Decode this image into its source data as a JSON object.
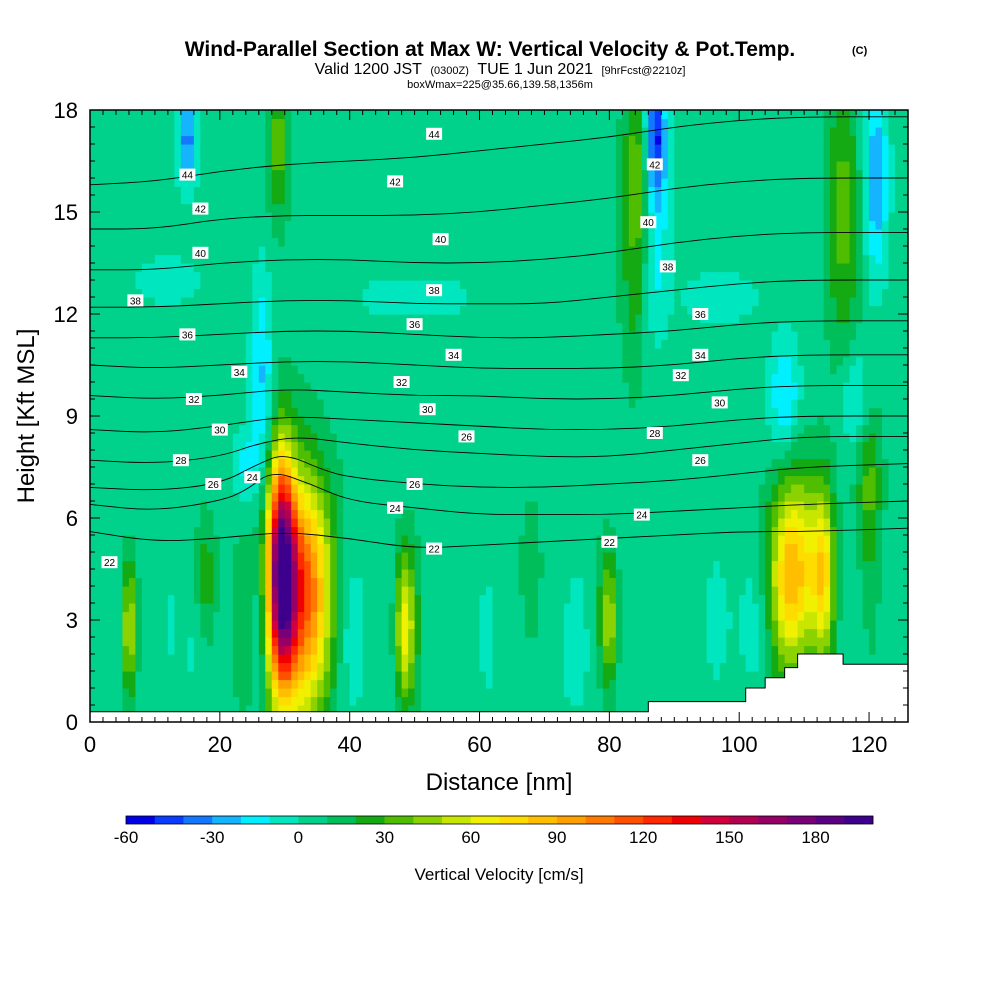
{
  "header": {
    "title": "Wind-Parallel Section at Max W: Vertical Velocity & Pot.Temp.",
    "title_mark": "(C)",
    "valid_prefix": "Valid 1200 JST",
    "valid_zulu": "(0300Z)",
    "valid_date": "TUE 1 Jun 2021",
    "forecast_info": "[9hrFcst@2210z]",
    "box_info": "boxWmax=225@35.66,139.58,1356m"
  },
  "chart_data": {
    "type": "heatmap",
    "xlabel": "Distance [nm]",
    "ylabel": "Height [Kft MSL]",
    "xlim": [
      0,
      126
    ],
    "ylim": [
      0,
      18
    ],
    "x_ticks": [
      "0",
      "20",
      "40",
      "60",
      "80",
      "100",
      "120"
    ],
    "y_ticks": [
      "0",
      "3",
      "6",
      "9",
      "12",
      "15",
      "18"
    ],
    "colorbar": {
      "title": "Vertical Velocity [cm/s]",
      "min": -60,
      "max": 200,
      "step": 10,
      "tick_labels": [
        "-60",
        "-30",
        "0",
        "30",
        "60",
        "90",
        "120",
        "150",
        "180"
      ],
      "colors": [
        "#0000e6",
        "#0a3cff",
        "#1478ff",
        "#14b4ff",
        "#00f0ff",
        "#00e6be",
        "#00d28c",
        "#00be5a",
        "#14aa14",
        "#50be00",
        "#8cd200",
        "#c8e600",
        "#f0f000",
        "#ffdc00",
        "#ffbe00",
        "#ffa000",
        "#ff7800",
        "#ff5000",
        "#ff2800",
        "#f00000",
        "#d2003c",
        "#b40050",
        "#960064",
        "#780078",
        "#5a0082",
        "#3c008c"
      ]
    },
    "background_value": 5,
    "updrafts": [
      {
        "x": 29.5,
        "y": 4.6,
        "sx": 1.4,
        "sy": 2.2,
        "peak": 150
      },
      {
        "x": 33,
        "y": 3.8,
        "sx": 2.8,
        "sy": 2.2,
        "peak": 90
      },
      {
        "x": 31,
        "y": 3.0,
        "sx": 4.0,
        "sy": 3.4,
        "peak": 35
      },
      {
        "x": 108.5,
        "y": 4.4,
        "sx": 2.6,
        "sy": 2.0,
        "peak": 85
      },
      {
        "x": 113,
        "y": 4.5,
        "sx": 1.2,
        "sy": 1.8,
        "peak": 55
      },
      {
        "x": 48.5,
        "y": 2.8,
        "sx": 1.1,
        "sy": 1.6,
        "peak": 65
      },
      {
        "x": 6,
        "y": 2.8,
        "sx": 0.7,
        "sy": 1.4,
        "peak": 55
      },
      {
        "x": 85,
        "y": 16.5,
        "sx": 1.8,
        "sy": 1.6,
        "peak": 30
      },
      {
        "x": 84,
        "y": 13.5,
        "sx": 1.6,
        "sy": 2.5,
        "peak": 22
      },
      {
        "x": 29,
        "y": 17,
        "sx": 1.2,
        "sy": 1.6,
        "peak": 30
      },
      {
        "x": 116,
        "y": 15,
        "sx": 1.8,
        "sy": 3.0,
        "peak": 30
      },
      {
        "x": 120,
        "y": 7.0,
        "sx": 1.4,
        "sy": 1.8,
        "peak": 28
      },
      {
        "x": 18,
        "y": 4.0,
        "sx": 1.2,
        "sy": 1.4,
        "peak": 25
      },
      {
        "x": 80,
        "y": 3.0,
        "sx": 1.0,
        "sy": 1.4,
        "peak": 45
      },
      {
        "x": 68,
        "y": 3.5,
        "sx": 1.2,
        "sy": 2.0,
        "peak": 20
      }
    ],
    "downdrafts": [
      {
        "x": 26.5,
        "y": 10.0,
        "sx": 1.2,
        "sy": 2.2,
        "peak": -28
      },
      {
        "x": 24,
        "y": 7.5,
        "sx": 1.5,
        "sy": 0.8,
        "peak": -20
      },
      {
        "x": 87,
        "y": 17.2,
        "sx": 1.2,
        "sy": 1.2,
        "peak": -60
      },
      {
        "x": 87,
        "y": 14.5,
        "sx": 1.5,
        "sy": 2.2,
        "peak": -25
      },
      {
        "x": 15,
        "y": 17.2,
        "sx": 1.0,
        "sy": 1.0,
        "peak": -40
      },
      {
        "x": 121,
        "y": 16,
        "sx": 1.3,
        "sy": 2.0,
        "peak": -35
      },
      {
        "x": 107,
        "y": 9.5,
        "sx": 1.6,
        "sy": 1.2,
        "peak": -28
      },
      {
        "x": 118,
        "y": 9.5,
        "sx": 1.6,
        "sy": 1.0,
        "peak": -22
      },
      {
        "x": 16,
        "y": 2.5,
        "sx": 1.5,
        "sy": 1.5,
        "peak": -12
      },
      {
        "x": 26,
        "y": 2.5,
        "sx": 1.0,
        "sy": 2.0,
        "peak": -12
      },
      {
        "x": 40,
        "y": 2.5,
        "sx": 4.0,
        "sy": 1.8,
        "peak": -10
      },
      {
        "x": 100,
        "y": 3.0,
        "sx": 2.5,
        "sy": 1.5,
        "peak": -10
      },
      {
        "x": 70,
        "y": 2.0,
        "sx": 6.0,
        "sy": 1.5,
        "peak": -8
      },
      {
        "x": 50,
        "y": 12.5,
        "sx": 6.0,
        "sy": 0.4,
        "peak": -14
      },
      {
        "x": 97,
        "y": 12.5,
        "sx": 4.0,
        "sy": 0.5,
        "peak": -14
      },
      {
        "x": 12,
        "y": 13.0,
        "sx": 4.0,
        "sy": 0.5,
        "peak": -12
      }
    ],
    "terrain": [
      [
        0,
        0.3
      ],
      [
        86,
        0.3
      ],
      [
        86,
        0.6
      ],
      [
        101,
        0.6
      ],
      [
        101,
        1.0
      ],
      [
        104,
        1.0
      ],
      [
        104,
        1.3
      ],
      [
        107,
        1.3
      ],
      [
        107,
        1.6
      ],
      [
        109,
        1.6
      ],
      [
        109,
        2.0
      ],
      [
        116,
        2.0
      ],
      [
        116,
        1.7
      ],
      [
        126,
        1.7
      ]
    ],
    "isentropes": [
      {
        "label": "22",
        "points": [
          [
            0,
            5.6
          ],
          [
            10,
            5.3
          ],
          [
            20,
            5.4
          ],
          [
            30,
            5.6
          ],
          [
            40,
            5.4
          ],
          [
            50,
            5.1
          ],
          [
            60,
            5.2
          ],
          [
            70,
            5.3
          ],
          [
            80,
            5.4
          ],
          [
            90,
            5.5
          ],
          [
            100,
            5.6
          ],
          [
            110,
            5.6
          ],
          [
            126,
            5.7
          ]
        ]
      },
      {
        "label": "24",
        "points": [
          [
            0,
            6.4
          ],
          [
            10,
            6.2
          ],
          [
            20,
            6.5
          ],
          [
            24,
            6.8
          ],
          [
            28,
            7.4
          ],
          [
            34,
            7.0
          ],
          [
            40,
            6.5
          ],
          [
            50,
            6.3
          ],
          [
            60,
            6.1
          ],
          [
            70,
            6.1
          ],
          [
            80,
            6.1
          ],
          [
            90,
            6.2
          ],
          [
            100,
            6.3
          ],
          [
            110,
            6.4
          ],
          [
            126,
            6.5
          ]
        ]
      },
      {
        "label": "26",
        "points": [
          [
            0,
            6.9
          ],
          [
            10,
            6.8
          ],
          [
            20,
            7.0
          ],
          [
            26,
            7.6
          ],
          [
            30,
            7.9
          ],
          [
            36,
            7.4
          ],
          [
            40,
            7.2
          ],
          [
            50,
            7.0
          ],
          [
            60,
            6.9
          ],
          [
            70,
            6.9
          ],
          [
            80,
            7.0
          ],
          [
            90,
            7.1
          ],
          [
            100,
            7.3
          ],
          [
            110,
            7.5
          ],
          [
            126,
            7.6
          ]
        ]
      },
      {
        "label": "28",
        "points": [
          [
            0,
            7.7
          ],
          [
            10,
            7.6
          ],
          [
            20,
            7.8
          ],
          [
            26,
            8.2
          ],
          [
            32,
            8.4
          ],
          [
            40,
            8.2
          ],
          [
            50,
            8.0
          ],
          [
            60,
            7.9
          ],
          [
            70,
            7.8
          ],
          [
            80,
            7.8
          ],
          [
            90,
            8.0
          ],
          [
            100,
            8.2
          ],
          [
            110,
            8.4
          ],
          [
            126,
            8.4
          ]
        ]
      },
      {
        "label": "30",
        "points": [
          [
            0,
            8.6
          ],
          [
            10,
            8.5
          ],
          [
            20,
            8.7
          ],
          [
            30,
            9.0
          ],
          [
            40,
            8.9
          ],
          [
            50,
            8.8
          ],
          [
            60,
            8.7
          ],
          [
            70,
            8.6
          ],
          [
            80,
            8.6
          ],
          [
            90,
            8.7
          ],
          [
            100,
            8.9
          ],
          [
            110,
            9.0
          ],
          [
            126,
            9.0
          ]
        ]
      },
      {
        "label": "32",
        "points": [
          [
            0,
            9.6
          ],
          [
            10,
            9.5
          ],
          [
            20,
            9.6
          ],
          [
            30,
            9.8
          ],
          [
            40,
            9.7
          ],
          [
            50,
            9.6
          ],
          [
            60,
            9.6
          ],
          [
            70,
            9.5
          ],
          [
            80,
            9.5
          ],
          [
            90,
            9.6
          ],
          [
            100,
            9.8
          ],
          [
            110,
            9.9
          ],
          [
            126,
            9.9
          ]
        ]
      },
      {
        "label": "34",
        "points": [
          [
            0,
            10.5
          ],
          [
            10,
            10.4
          ],
          [
            20,
            10.5
          ],
          [
            30,
            10.6
          ],
          [
            40,
            10.6
          ],
          [
            50,
            10.5
          ],
          [
            60,
            10.4
          ],
          [
            70,
            10.4
          ],
          [
            80,
            10.4
          ],
          [
            90,
            10.5
          ],
          [
            100,
            10.7
          ],
          [
            110,
            10.8
          ],
          [
            126,
            10.8
          ]
        ]
      },
      {
        "label": "36",
        "points": [
          [
            0,
            11.3
          ],
          [
            10,
            11.3
          ],
          [
            20,
            11.4
          ],
          [
            30,
            11.5
          ],
          [
            40,
            11.5
          ],
          [
            50,
            11.4
          ],
          [
            60,
            11.3
          ],
          [
            70,
            11.3
          ],
          [
            80,
            11.4
          ],
          [
            90,
            11.5
          ],
          [
            100,
            11.7
          ],
          [
            110,
            11.8
          ],
          [
            126,
            11.8
          ]
        ]
      },
      {
        "label": "38",
        "points": [
          [
            0,
            12.2
          ],
          [
            10,
            12.2
          ],
          [
            20,
            12.3
          ],
          [
            30,
            12.4
          ],
          [
            40,
            12.4
          ],
          [
            50,
            12.3
          ],
          [
            60,
            12.3
          ],
          [
            70,
            12.3
          ],
          [
            80,
            12.5
          ],
          [
            90,
            12.7
          ],
          [
            100,
            12.9
          ],
          [
            110,
            13.0
          ],
          [
            126,
            13.0
          ]
        ]
      },
      {
        "label": "40",
        "points": [
          [
            0,
            13.3
          ],
          [
            10,
            13.3
          ],
          [
            20,
            13.5
          ],
          [
            30,
            13.6
          ],
          [
            40,
            13.6
          ],
          [
            50,
            13.5
          ],
          [
            60,
            13.5
          ],
          [
            70,
            13.6
          ],
          [
            80,
            13.8
          ],
          [
            90,
            14.1
          ],
          [
            100,
            14.3
          ],
          [
            110,
            14.4
          ],
          [
            126,
            14.4
          ]
        ]
      },
      {
        "label": "42",
        "points": [
          [
            0,
            14.5
          ],
          [
            10,
            14.5
          ],
          [
            20,
            14.8
          ],
          [
            30,
            14.9
          ],
          [
            40,
            14.9
          ],
          [
            50,
            14.9
          ],
          [
            60,
            15.0
          ],
          [
            70,
            15.2
          ],
          [
            80,
            15.4
          ],
          [
            90,
            15.7
          ],
          [
            100,
            15.9
          ],
          [
            110,
            16.0
          ],
          [
            126,
            16.0
          ]
        ]
      },
      {
        "label": "44",
        "points": [
          [
            0,
            15.8
          ],
          [
            10,
            15.9
          ],
          [
            20,
            16.2
          ],
          [
            30,
            16.4
          ],
          [
            40,
            16.5
          ],
          [
            50,
            16.6
          ],
          [
            60,
            16.8
          ],
          [
            70,
            17.0
          ],
          [
            80,
            17.2
          ],
          [
            90,
            17.5
          ],
          [
            100,
            17.7
          ],
          [
            110,
            17.8
          ],
          [
            126,
            17.8
          ]
        ]
      }
    ],
    "contour_labels": [
      {
        "text": "22",
        "x": 3,
        "y": 4.7
      },
      {
        "text": "22",
        "x": 53,
        "y": 5.1
      },
      {
        "text": "22",
        "x": 80,
        "y": 5.3
      },
      {
        "text": "24",
        "x": 25,
        "y": 7.2
      },
      {
        "text": "24",
        "x": 47,
        "y": 6.3
      },
      {
        "text": "24",
        "x": 85,
        "y": 6.1
      },
      {
        "text": "26",
        "x": 19,
        "y": 7.0
      },
      {
        "text": "26",
        "x": 50,
        "y": 7.0
      },
      {
        "text": "26",
        "x": 94,
        "y": 7.7
      },
      {
        "text": "28",
        "x": 14,
        "y": 7.7
      },
      {
        "text": "28",
        "x": 87,
        "y": 8.5
      },
      {
        "text": "26",
        "x": 58,
        "y": 8.4
      },
      {
        "text": "30",
        "x": 20,
        "y": 8.6
      },
      {
        "text": "30",
        "x": 52,
        "y": 9.2
      },
      {
        "text": "30",
        "x": 97,
        "y": 9.4
      },
      {
        "text": "32",
        "x": 16,
        "y": 9.5
      },
      {
        "text": "32",
        "x": 48,
        "y": 10.0
      },
      {
        "text": "32",
        "x": 91,
        "y": 10.2
      },
      {
        "text": "34",
        "x": 23,
        "y": 10.3
      },
      {
        "text": "34",
        "x": 56,
        "y": 10.8
      },
      {
        "text": "34",
        "x": 94,
        "y": 10.8
      },
      {
        "text": "36",
        "x": 15,
        "y": 11.4
      },
      {
        "text": "36",
        "x": 50,
        "y": 11.7
      },
      {
        "text": "36",
        "x": 94,
        "y": 12.0
      },
      {
        "text": "38",
        "x": 7,
        "y": 12.4
      },
      {
        "text": "38",
        "x": 53,
        "y": 12.7
      },
      {
        "text": "38",
        "x": 89,
        "y": 13.4
      },
      {
        "text": "40",
        "x": 17,
        "y": 13.8
      },
      {
        "text": "40",
        "x": 54,
        "y": 14.2
      },
      {
        "text": "40",
        "x": 86,
        "y": 14.7
      },
      {
        "text": "42",
        "x": 17,
        "y": 15.1
      },
      {
        "text": "42",
        "x": 47,
        "y": 15.9
      },
      {
        "text": "42",
        "x": 87,
        "y": 16.4
      },
      {
        "text": "44",
        "x": 15,
        "y": 16.1
      },
      {
        "text": "44",
        "x": 53,
        "y": 17.3
      }
    ]
  }
}
